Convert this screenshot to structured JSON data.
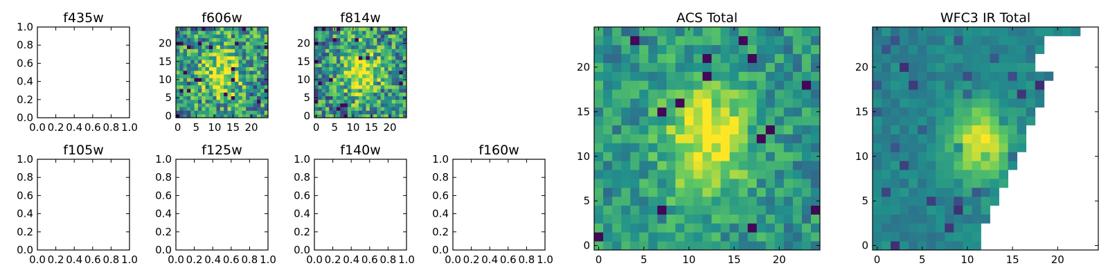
{
  "figure": {
    "background": "#ffffff",
    "colormap": "viridis",
    "colormap_stops": [
      "#440154",
      "#3b528b",
      "#21918c",
      "#5ec962",
      "#fde725"
    ]
  },
  "chart_data": [
    {
      "id": "f435w",
      "type": "heatmap",
      "title": "f435w",
      "empty": true,
      "xlim": [
        0,
        1
      ],
      "ylim": [
        0,
        1
      ],
      "xticks": [
        "0.0",
        "0.2",
        "0.4",
        "0.6",
        "0.8",
        "1.0"
      ],
      "yticks": [
        "0.0",
        "0.2",
        "0.4",
        "0.6",
        "0.8",
        "1.0"
      ]
    },
    {
      "id": "f606w",
      "type": "heatmap",
      "title": "f606w",
      "empty": false,
      "xlim": [
        -0.5,
        24.5
      ],
      "ylim": [
        -0.5,
        24.5
      ],
      "grid_size": 25,
      "center": [
        12,
        12
      ],
      "peak_sigma": 3.5,
      "pixel_noise": "high",
      "xticks": [
        "0",
        "5",
        "10",
        "15",
        "20"
      ],
      "yticks": [
        "0",
        "5",
        "10",
        "15",
        "20"
      ]
    },
    {
      "id": "f814w",
      "type": "heatmap",
      "title": "f814w",
      "empty": false,
      "xlim": [
        -0.5,
        24.5
      ],
      "ylim": [
        -0.5,
        24.5
      ],
      "grid_size": 25,
      "center": [
        12,
        12
      ],
      "peak_sigma": 3.5,
      "pixel_noise": "high",
      "xticks": [
        "0",
        "5",
        "10",
        "15",
        "20"
      ],
      "yticks": [
        "0",
        "5",
        "10",
        "15",
        "20"
      ]
    },
    {
      "id": "f105w",
      "type": "heatmap",
      "title": "f105w",
      "empty": true,
      "xlim": [
        0,
        1
      ],
      "ylim": [
        0,
        1
      ],
      "xticks": [
        "0.0",
        "0.2",
        "0.4",
        "0.6",
        "0.8",
        "1.0"
      ],
      "yticks": [
        "0.0",
        "0.2",
        "0.4",
        "0.6",
        "0.8",
        "1.0"
      ]
    },
    {
      "id": "f125w",
      "type": "heatmap",
      "title": "f125w",
      "empty": true,
      "xlim": [
        0,
        1
      ],
      "ylim": [
        0,
        1
      ],
      "xticks": [
        "0.0",
        "0.2",
        "0.4",
        "0.6",
        "0.8",
        "1.0"
      ],
      "yticks": [
        "0.0",
        "0.2",
        "0.4",
        "0.6",
        "0.8",
        "1.0"
      ]
    },
    {
      "id": "f140w",
      "type": "heatmap",
      "title": "f140w",
      "empty": true,
      "xlim": [
        0,
        1
      ],
      "ylim": [
        0,
        1
      ],
      "xticks": [
        "0.0",
        "0.2",
        "0.4",
        "0.6",
        "0.8",
        "1.0"
      ],
      "yticks": [
        "0.0",
        "0.2",
        "0.4",
        "0.6",
        "0.8",
        "1.0"
      ]
    },
    {
      "id": "f160w",
      "type": "heatmap",
      "title": "f160w",
      "empty": true,
      "xlim": [
        0,
        1
      ],
      "ylim": [
        0,
        1
      ],
      "xticks": [
        "0.0",
        "0.2",
        "0.4",
        "0.6",
        "0.8",
        "1.0"
      ],
      "yticks": [
        "0.0",
        "0.2",
        "0.4",
        "0.6",
        "0.8",
        "1.0"
      ]
    },
    {
      "id": "acs-total",
      "type": "heatmap",
      "title": "ACS Total",
      "empty": false,
      "xlim": [
        -0.5,
        24.5
      ],
      "ylim": [
        -0.5,
        24.5
      ],
      "grid_size": 25,
      "center": [
        12,
        12
      ],
      "peak_sigma": 3.5,
      "pixel_noise": "medium",
      "xticks": [
        "0",
        "5",
        "10",
        "15",
        "20"
      ],
      "yticks": [
        "0",
        "5",
        "10",
        "15",
        "20"
      ]
    },
    {
      "id": "wfc3-ir-total",
      "type": "heatmap",
      "title": "WFC3 IR Total",
      "empty": false,
      "xlim": [
        -0.5,
        24.5
      ],
      "ylim": [
        -0.5,
        24.5
      ],
      "grid_size": 25,
      "center": [
        11.5,
        11.5
      ],
      "peak_sigma": 2.2,
      "pixel_noise": "low",
      "row_extent_last_column": [
        11,
        11,
        11,
        12,
        12,
        13,
        13,
        14,
        14,
        15,
        15,
        16,
        16,
        16,
        17,
        17,
        18,
        18,
        18,
        19,
        17,
        17,
        18,
        18,
        22
      ],
      "xticks": [
        "0",
        "5",
        "10",
        "15",
        "20"
      ],
      "yticks": [
        "0",
        "5",
        "10",
        "15",
        "20"
      ]
    }
  ]
}
